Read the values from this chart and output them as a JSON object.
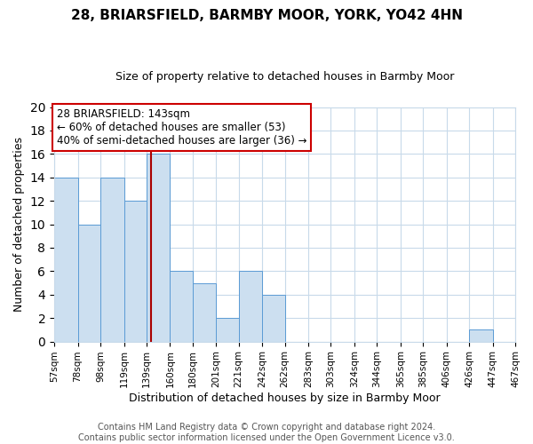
{
  "title": "28, BRIARSFIELD, BARMBY MOOR, YORK, YO42 4HN",
  "subtitle": "Size of property relative to detached houses in Barmby Moor",
  "xlabel": "Distribution of detached houses by size in Barmby Moor",
  "ylabel": "Number of detached properties",
  "bar_edges": [
    57,
    78,
    98,
    119,
    139,
    160,
    180,
    201,
    221,
    242,
    262,
    283,
    303,
    324,
    344,
    365,
    385,
    406,
    426,
    447,
    467
  ],
  "bar_heights": [
    14,
    10,
    14,
    12,
    16,
    6,
    5,
    2,
    6,
    4,
    0,
    0,
    0,
    0,
    0,
    0,
    0,
    0,
    1,
    0
  ],
  "bar_color": "#ccdff0",
  "bar_edge_color": "#5b9bd5",
  "property_line_x": 143,
  "ylim": [
    0,
    20
  ],
  "yticks": [
    0,
    2,
    4,
    6,
    8,
    10,
    12,
    14,
    16,
    18,
    20
  ],
  "annotation_title": "28 BRIARSFIELD: 143sqm",
  "annotation_line1": "← 60% of detached houses are smaller (53)",
  "annotation_line2": "40% of semi-detached houses are larger (36) →",
  "annotation_box_color": "#ffffff",
  "annotation_box_edge": "#cc0000",
  "footer1": "Contains HM Land Registry data © Crown copyright and database right 2024.",
  "footer2": "Contains public sector information licensed under the Open Government Licence v3.0.",
  "tick_labels": [
    "57sqm",
    "78sqm",
    "98sqm",
    "119sqm",
    "139sqm",
    "160sqm",
    "180sqm",
    "201sqm",
    "221sqm",
    "242sqm",
    "262sqm",
    "283sqm",
    "303sqm",
    "324sqm",
    "344sqm",
    "365sqm",
    "385sqm",
    "406sqm",
    "426sqm",
    "447sqm",
    "467sqm"
  ],
  "grid_color": "#c8daea",
  "title_fontsize": 11,
  "subtitle_fontsize": 9,
  "ylabel_fontsize": 9,
  "xlabel_fontsize": 9,
  "tick_fontsize": 7.5,
  "footer_fontsize": 7,
  "annot_fontsize": 8.5
}
